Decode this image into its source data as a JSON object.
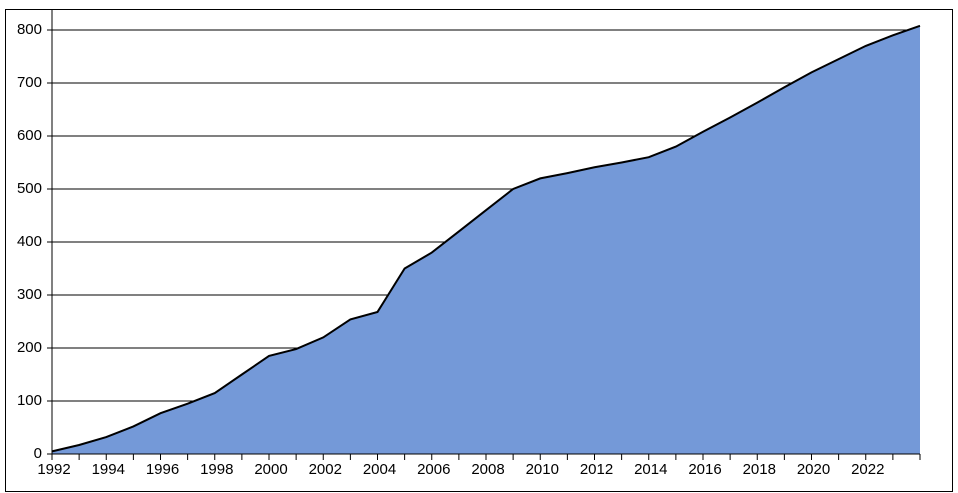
{
  "chart_data": {
    "type": "area",
    "color": "#7499d8",
    "line_color": "#000000",
    "grid": true,
    "x": [
      1992,
      1993,
      1994,
      1995,
      1996,
      1997,
      1998,
      1999,
      2000,
      2001,
      2002,
      2003,
      2004,
      2005,
      2006,
      2007,
      2008,
      2009,
      2010,
      2011,
      2012,
      2013,
      2014,
      2015,
      2016,
      2017,
      2018,
      2019,
      2020,
      2021,
      2022,
      2023,
      2024
    ],
    "values": [
      5,
      17,
      32,
      52,
      77,
      95,
      115,
      150,
      185,
      198,
      220,
      254,
      268,
      350,
      380,
      420,
      460,
      500,
      520,
      530,
      541,
      550,
      560,
      580,
      608,
      635,
      663,
      692,
      720,
      745,
      770,
      790,
      808
    ],
    "xlim": [
      1992,
      2024
    ],
    "xticks": [
      1992,
      1994,
      1996,
      1998,
      2000,
      2002,
      2004,
      2006,
      2008,
      2010,
      2012,
      2014,
      2016,
      2018,
      2020,
      2022
    ],
    "ylim": [
      0,
      800
    ],
    "yticks": [
      0,
      100,
      200,
      300,
      400,
      500,
      600,
      700,
      800
    ]
  }
}
